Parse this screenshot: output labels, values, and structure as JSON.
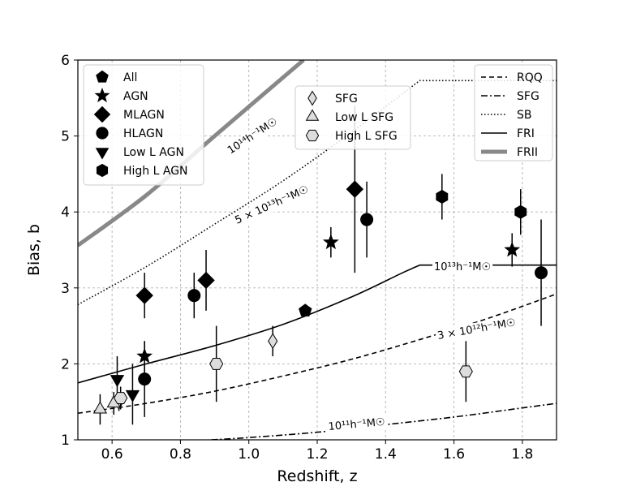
{
  "chart_data": {
    "type": "scatter",
    "title": "",
    "xlabel": "Redshift, z",
    "ylabel": "Bias, b",
    "xlim": [
      0.5,
      1.9
    ],
    "ylim": [
      1,
      6
    ],
    "xticks": [
      "0.6",
      "0.8",
      "1.0",
      "1.2",
      "1.4",
      "1.6",
      "1.8"
    ],
    "yticks": [
      "1",
      "2",
      "3",
      "4",
      "5",
      "6"
    ],
    "grid": true,
    "colors": {
      "gray": "#888888",
      "line": "#000000",
      "open_fill": "#dddddd"
    },
    "legends": {
      "agn": {
        "placement": "top-left",
        "entries": [
          {
            "label": "All",
            "marker": "pentagon"
          },
          {
            "label": "AGN",
            "marker": "star"
          },
          {
            "label": "MLAGN",
            "marker": "diamond"
          },
          {
            "label": "HLAGN",
            "marker": "circle"
          },
          {
            "label": "Low L AGN",
            "marker": "triangle-down"
          },
          {
            "label": "High L AGN",
            "marker": "hexagon"
          }
        ]
      },
      "sfg": {
        "placement": "top-center",
        "entries": [
          {
            "label": "SFG",
            "marker": "thin-diamond-open"
          },
          {
            "label": "Low L SFG",
            "marker": "triangle-up-open"
          },
          {
            "label": "High L SFG",
            "marker": "hexagon-open"
          }
        ]
      },
      "models": {
        "placement": "top-right",
        "entries": [
          {
            "label": "RQQ",
            "style": "dashed"
          },
          {
            "label": "SFG",
            "style": "dashdot"
          },
          {
            "label": "SB",
            "style": "dotted"
          },
          {
            "label": "FRI",
            "style": "solid"
          },
          {
            "label": "FRII",
            "style": "thick-gray"
          }
        ]
      }
    },
    "curve_labels": {
      "frii": "10¹⁴h⁻¹M☉",
      "sb": "5 × 10¹³h⁻¹M☉",
      "fri": "10¹³h⁻¹M☉",
      "rqq": "3 × 10¹²h⁻¹M☉",
      "sfg": "10¹¹h⁻¹M☉"
    },
    "series": [
      {
        "name": "All",
        "marker": "pentagon",
        "points": [
          {
            "x": 1.165,
            "y": 2.7,
            "err": 0.07
          }
        ]
      },
      {
        "name": "AGN",
        "marker": "star",
        "points": [
          {
            "x": 0.695,
            "y": 2.1,
            "err": 0.2
          },
          {
            "x": 1.24,
            "y": 3.6,
            "err": 0.2
          },
          {
            "x": 1.77,
            "y": 3.5,
            "err": 0.22
          }
        ]
      },
      {
        "name": "MLAGN",
        "marker": "diamond",
        "points": [
          {
            "x": 0.695,
            "y": 2.9,
            "err": 0.3
          },
          {
            "x": 0.875,
            "y": 3.1,
            "err": 0.4
          },
          {
            "x": 1.31,
            "y": 4.3,
            "err": 1.1
          }
        ]
      },
      {
        "name": "HLAGN",
        "marker": "circle",
        "points": [
          {
            "x": 0.695,
            "y": 1.8,
            "err": 0.5
          },
          {
            "x": 0.84,
            "y": 2.9,
            "err": 0.3
          },
          {
            "x": 1.345,
            "y": 3.9,
            "err": 0.5
          },
          {
            "x": 1.855,
            "y": 3.2,
            "err": 0.7
          }
        ]
      },
      {
        "name": "Low L AGN",
        "marker": "triangle-down",
        "points": [
          {
            "x": 0.615,
            "y": 1.8,
            "err": 0.3
          },
          {
            "x": 0.66,
            "y": 1.6,
            "err": 0.4
          }
        ]
      },
      {
        "name": "High L AGN",
        "marker": "hexagon",
        "points": [
          {
            "x": 1.565,
            "y": 4.2,
            "err": 0.3
          },
          {
            "x": 1.795,
            "y": 4.0,
            "err": 0.3
          }
        ]
      },
      {
        "name": "SFG",
        "marker": "thin-diamond-open",
        "points": [
          {
            "x": 0.62,
            "y": 1.5,
            "err": 0.12
          },
          {
            "x": 1.07,
            "y": 2.3,
            "err": 0.2
          }
        ]
      },
      {
        "name": "Low L SFG",
        "marker": "triangle-up-open",
        "points": [
          {
            "x": 0.565,
            "y": 1.4,
            "err": 0.2
          },
          {
            "x": 0.605,
            "y": 1.48,
            "err": 0.15
          }
        ]
      },
      {
        "name": "High L SFG",
        "marker": "hexagon-open",
        "points": [
          {
            "x": 0.625,
            "y": 1.55,
            "err": 0.15
          },
          {
            "x": 0.905,
            "y": 2.0,
            "err": 0.5
          },
          {
            "x": 1.635,
            "y": 1.9,
            "err": 0.4
          }
        ]
      }
    ],
    "model_curves": [
      {
        "name": "FRII",
        "style": "thick-gray",
        "points": [
          [
            0.5,
            3.56
          ],
          [
            0.7,
            4.22
          ],
          [
            0.9,
            5.0
          ],
          [
            1.1,
            5.77
          ],
          [
            1.16,
            6.0
          ]
        ]
      },
      {
        "name": "SB",
        "style": "dotted",
        "points": [
          [
            0.5,
            2.78
          ],
          [
            0.7,
            3.28
          ],
          [
            0.9,
            3.84
          ],
          [
            1.1,
            4.41
          ],
          [
            1.3,
            5.05
          ],
          [
            1.5,
            5.73
          ],
          [
            1.9,
            5.73
          ]
        ]
      },
      {
        "name": "FRI",
        "style": "solid",
        "points": [
          [
            0.5,
            1.75
          ],
          [
            0.7,
            2.0
          ],
          [
            0.9,
            2.24
          ],
          [
            1.1,
            2.52
          ],
          [
            1.3,
            2.88
          ],
          [
            1.45,
            3.2
          ],
          [
            1.5,
            3.3
          ],
          [
            1.9,
            3.3
          ]
        ]
      },
      {
        "name": "RQQ",
        "style": "dashed",
        "points": [
          [
            0.5,
            1.35
          ],
          [
            0.7,
            1.48
          ],
          [
            0.9,
            1.64
          ],
          [
            1.1,
            1.84
          ],
          [
            1.3,
            2.06
          ],
          [
            1.5,
            2.32
          ],
          [
            1.7,
            2.6
          ],
          [
            1.9,
            2.92
          ]
        ]
      },
      {
        "name": "SFG",
        "style": "dashdot",
        "points": [
          [
            0.89,
            1.0
          ],
          [
            1.0,
            1.03
          ],
          [
            1.2,
            1.1
          ],
          [
            1.4,
            1.2
          ],
          [
            1.6,
            1.3
          ],
          [
            1.8,
            1.42
          ],
          [
            1.9,
            1.48
          ]
        ]
      }
    ]
  }
}
